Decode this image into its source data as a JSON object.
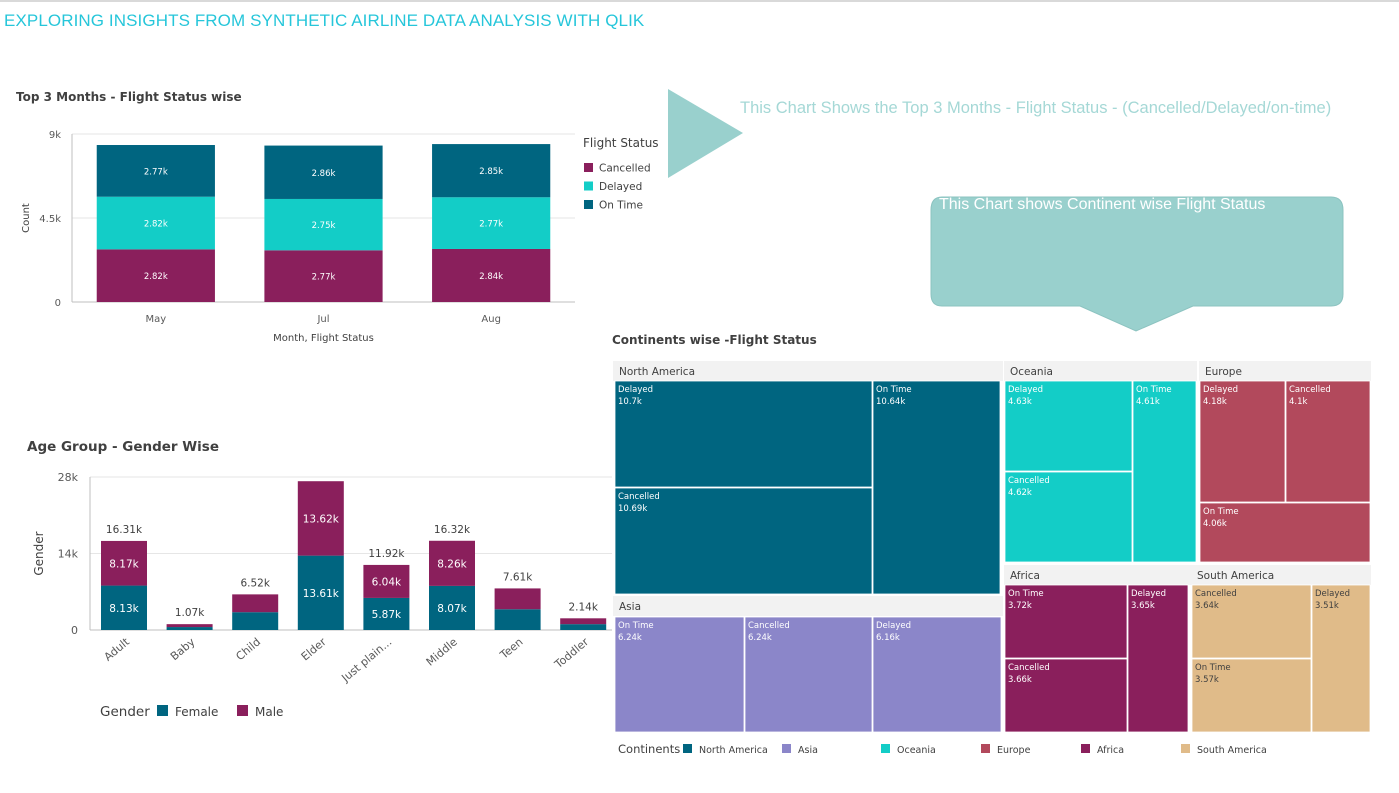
{
  "page": {
    "title": "EXPLORING INSIGHTS FROM SYNTHETIC AIRLINE DATA ANALYSIS WITH QLIK"
  },
  "annotations": {
    "arrow_text": "This Chart Shows the Top 3 Months - Flight Status - (Cancelled/Delayed/on-time)",
    "callout_text": "This Chart shows Continent wise Flight Status",
    "shape_color": "#99d0cd"
  },
  "chart_data": [
    {
      "id": "top3months",
      "type": "bar",
      "stacked": true,
      "title": "Top 3 Months - Flight Status wise",
      "xlabel": "Month, Flight Status",
      "ylabel": "Count",
      "ylim": [
        0,
        9000
      ],
      "y_ticks": [
        "0",
        "4.5k",
        "9k"
      ],
      "grid": true,
      "legend_title": "Flight Status",
      "legend_position": "right",
      "categories": [
        "May",
        "Jul",
        "Aug"
      ],
      "series": [
        {
          "name": "Cancelled",
          "color": "#8a1f5c",
          "values": [
            2820,
            2770,
            2840
          ],
          "labels": [
            "2.82k",
            "2.77k",
            "2.84k"
          ]
        },
        {
          "name": "Delayed",
          "color": "#13cdc7",
          "values": [
            2820,
            2750,
            2770
          ],
          "labels": [
            "2.82k",
            "2.75k",
            "2.77k"
          ]
        },
        {
          "name": "On Time",
          "color": "#006580",
          "values": [
            2770,
            2860,
            2850
          ],
          "labels": [
            "2.77k",
            "2.86k",
            "2.85k"
          ]
        }
      ]
    },
    {
      "id": "agegroup",
      "type": "bar",
      "stacked": true,
      "title": "Age Group - Gender Wise",
      "xlabel": "",
      "ylabel": "Gender",
      "ylim": [
        0,
        28000
      ],
      "y_ticks": [
        "0",
        "14k",
        "28k"
      ],
      "grid": true,
      "legend_title": "Gender",
      "legend_position": "bottom",
      "categories": [
        "Adult",
        "Baby",
        "Child",
        "Elder",
        "Just plain...",
        "Middle",
        "Teen",
        "Toddler"
      ],
      "totals": [
        16310,
        1070,
        6520,
        27230,
        11920,
        16320,
        7610,
        2140
      ],
      "total_labels": [
        "16.31k",
        "1.07k",
        "6.52k",
        "",
        "11.92k",
        "16.32k",
        "7.61k",
        "2.14k"
      ],
      "series": [
        {
          "name": "Female",
          "color": "#006580",
          "values": [
            8130,
            540,
            3260,
            13610,
            5870,
            8070,
            3800,
            1070
          ],
          "labels": [
            "8.13k",
            "",
            "",
            "13.61k",
            "5.87k",
            "8.07k",
            "",
            ""
          ]
        },
        {
          "name": "Male",
          "color": "#8a1f5c",
          "values": [
            8170,
            530,
            3260,
            13620,
            6040,
            8260,
            3810,
            1070
          ],
          "labels": [
            "8.17k",
            "",
            "",
            "13.62k",
            "6.04k",
            "8.26k",
            "",
            ""
          ]
        }
      ]
    },
    {
      "id": "continents",
      "type": "treemap",
      "title": "Continents wise -Flight Status",
      "legend_title": "Continents",
      "legend_position": "bottom",
      "groups": [
        {
          "name": "North America",
          "color": "#006580",
          "cells": [
            {
              "label": "Delayed",
              "value": "10.7k"
            },
            {
              "label": "Cancelled",
              "value": "10.69k"
            },
            {
              "label": "On Time",
              "value": "10.64k"
            }
          ]
        },
        {
          "name": "Asia",
          "color": "#8b86c9",
          "cells": [
            {
              "label": "On Time",
              "value": "6.24k"
            },
            {
              "label": "Cancelled",
              "value": "6.24k"
            },
            {
              "label": "Delayed",
              "value": "6.16k"
            }
          ]
        },
        {
          "name": "Oceania",
          "color": "#13cdc7",
          "cells": [
            {
              "label": "Delayed",
              "value": "4.63k"
            },
            {
              "label": "Cancelled",
              "value": "4.62k"
            },
            {
              "label": "On Time",
              "value": "4.61k"
            }
          ]
        },
        {
          "name": "Europe",
          "color": "#b2495c",
          "cells": [
            {
              "label": "Delayed",
              "value": "4.18k"
            },
            {
              "label": "Cancelled",
              "value": "4.1k"
            },
            {
              "label": "On Time",
              "value": "4.06k"
            }
          ]
        },
        {
          "name": "Africa",
          "color": "#8a1f5c",
          "cells": [
            {
              "label": "On Time",
              "value": "3.72k"
            },
            {
              "label": "Cancelled",
              "value": "3.66k"
            },
            {
              "label": "Delayed",
              "value": "3.65k"
            }
          ]
        },
        {
          "name": "South America",
          "color": "#e0bb89",
          "cells": [
            {
              "label": "Cancelled",
              "value": "3.64k"
            },
            {
              "label": "On Time",
              "value": "3.57k"
            },
            {
              "label": "Delayed",
              "value": "3.51k"
            }
          ]
        }
      ]
    }
  ]
}
